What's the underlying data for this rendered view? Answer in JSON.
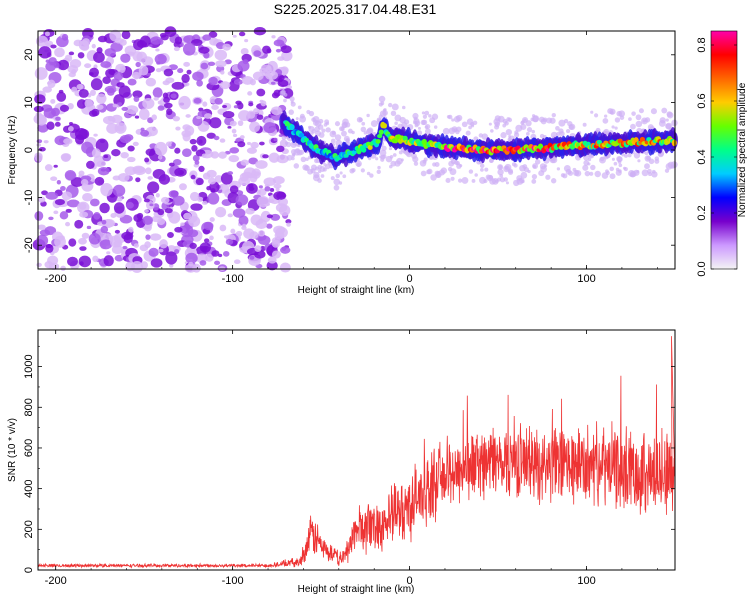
{
  "figure_title": "S225.2025.317.04.48.E31",
  "chart_data": [
    {
      "type": "heatmap",
      "panel": "top",
      "description": "Spectrogram of frequency versus height of straight line, colored by normalized spectral amplitude",
      "xlabel": "Height of straight line (km)",
      "ylabel": "Frequency (Hz)",
      "xlim": [
        -210,
        150
      ],
      "ylim": [
        -25,
        25
      ],
      "xticks": [
        -200,
        -100,
        0,
        100
      ],
      "yticks": [
        20,
        10,
        0,
        -10,
        -20
      ],
      "colorbar": {
        "label": "Normalized spectral amplitude",
        "range": [
          0.0,
          0.85
        ],
        "ticks": [
          "0.0",
          "0.2",
          "0.4",
          "0.6",
          "0.8"
        ],
        "colors": [
          "#f4f4f4",
          "#cc99ff",
          "#7700cc",
          "#0000ff",
          "#00ccff",
          "#00ff88",
          "#66ff00",
          "#ffcc00",
          "#ff6600",
          "#ff0000",
          "#ff00aa"
        ]
      },
      "regions": [
        {
          "name": "noise",
          "x_range": [
            -210,
            -68
          ],
          "freq_range": [
            -25,
            25
          ],
          "amplitude_range": [
            0.0,
            0.15
          ]
        },
        {
          "name": "signal_band",
          "x_range": [
            -72,
            150
          ],
          "center_freq_hz": 0.5,
          "band_halfwidth_hz": 3,
          "amplitude_range": [
            0.2,
            0.85
          ]
        }
      ],
      "band_center_profile": [
        {
          "x": -72,
          "f": 6
        },
        {
          "x": -62,
          "f": 3
        },
        {
          "x": -52,
          "f": 0
        },
        {
          "x": -42,
          "f": -1.5
        },
        {
          "x": -30,
          "f": 0
        },
        {
          "x": -18,
          "f": 1.5
        },
        {
          "x": -15,
          "f": 5
        },
        {
          "x": -10,
          "f": 2.5
        },
        {
          "x": 0,
          "f": 2
        },
        {
          "x": 20,
          "f": 0.5
        },
        {
          "x": 40,
          "f": 0
        },
        {
          "x": 60,
          "f": 0
        },
        {
          "x": 80,
          "f": 0.5
        },
        {
          "x": 100,
          "f": 1
        },
        {
          "x": 120,
          "f": 1.5
        },
        {
          "x": 150,
          "f": 2
        }
      ]
    },
    {
      "type": "line",
      "panel": "bottom",
      "xlabel": "Height of straight line (km)",
      "ylabel": "SNR (10 * v/v)",
      "xlim": [
        -210,
        150
      ],
      "ylim": [
        0,
        1180
      ],
      "xticks": [
        -200,
        -100,
        0,
        100
      ],
      "yticks": [
        0,
        200,
        400,
        600,
        800,
        1000
      ],
      "color": "#ee3333",
      "envelope": [
        {
          "x": -210,
          "mean": 22,
          "spread": 10
        },
        {
          "x": -80,
          "mean": 22,
          "spread": 10
        },
        {
          "x": -62,
          "mean": 40,
          "spread": 30
        },
        {
          "x": -55,
          "mean": 180,
          "spread": 130
        },
        {
          "x": -47,
          "mean": 90,
          "spread": 60
        },
        {
          "x": -38,
          "mean": 50,
          "spread": 40
        },
        {
          "x": -30,
          "mean": 200,
          "spread": 140
        },
        {
          "x": -15,
          "mean": 230,
          "spread": 160
        },
        {
          "x": 0,
          "mean": 320,
          "spread": 200
        },
        {
          "x": 20,
          "mean": 470,
          "spread": 200
        },
        {
          "x": 40,
          "mean": 530,
          "spread": 200
        },
        {
          "x": 60,
          "mean": 540,
          "spread": 210
        },
        {
          "x": 80,
          "mean": 520,
          "spread": 220
        },
        {
          "x": 100,
          "mean": 510,
          "spread": 230
        },
        {
          "x": 120,
          "mean": 500,
          "spread": 240
        },
        {
          "x": 140,
          "mean": 470,
          "spread": 250
        },
        {
          "x": 150,
          "mean": 480,
          "spread": 260
        }
      ],
      "peak": {
        "x": 148,
        "y": 1150
      }
    }
  ]
}
